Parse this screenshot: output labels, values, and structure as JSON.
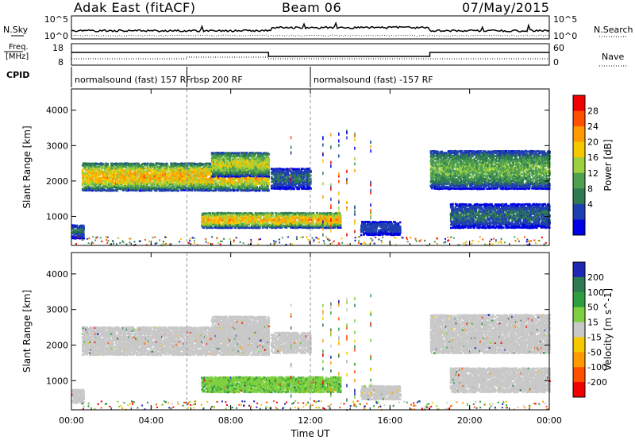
{
  "header": {
    "title": "Adak East (fitACF)",
    "beam": "Beam 06",
    "date": "07/May/2015"
  },
  "strip_labels": {
    "nsky": "N.Sky",
    "nsearch": "N.Search",
    "freq_line1": "Freq.",
    "freq_line2": "[MHz]",
    "nave": "Nave",
    "cpid": "CPID",
    "nsky_ticks": [
      "10^5",
      "10^0"
    ],
    "freq_ticks": [
      "18",
      "8"
    ],
    "nave_ticks": [
      "60",
      "0"
    ]
  },
  "cpid_segments": [
    {
      "label": "normalsound (fast) 157 RF",
      "start_h": 0,
      "end_h": 5.8
    },
    {
      "label": "rbsp 200 RF",
      "start_h": 5.8,
      "end_h": 9.9
    },
    {
      "label": "normalsound (fast) -157 RF",
      "start_h": 12.0,
      "end_h": 24
    }
  ],
  "chart_data": [
    {
      "type": "heatmap",
      "name": "power-panel",
      "xlabel": "",
      "ylabel": "Slant Range [km]",
      "x_ticks": [
        "00:00",
        "04:00",
        "08:00",
        "12:00",
        "16:00",
        "20:00",
        "00:00"
      ],
      "y_ticks": [
        1000,
        2000,
        3000,
        4000
      ],
      "xlim_hours": [
        0,
        24
      ],
      "ylim_km": [
        180,
        4600
      ],
      "colorbar_label": "Power [dB]",
      "colorbar_ticks": [
        28,
        24,
        20,
        16,
        12,
        8,
        4
      ],
      "colorbar_range": [
        0,
        30
      ],
      "colors": [
        "#0000e6",
        "#1f3fb0",
        "#2f7a50",
        "#4fa050",
        "#9cd040",
        "#f5c800",
        "#ff9a00",
        "#ff5000",
        "#f00000"
      ],
      "echo_regions": [
        {
          "start_h": 0.5,
          "end_h": 9.9,
          "range_km": [
            1750,
            2550
          ],
          "peak_db": 22
        },
        {
          "start_h": 7.0,
          "end_h": 9.9,
          "range_km": [
            2150,
            2850
          ],
          "peak_db": 18
        },
        {
          "start_h": 6.5,
          "end_h": 13.5,
          "range_km": [
            700,
            1150
          ],
          "peak_db": 22
        },
        {
          "start_h": 10.0,
          "end_h": 12.0,
          "range_km": [
            1800,
            2400
          ],
          "peak_db": 8
        },
        {
          "start_h": 18.0,
          "end_h": 24.0,
          "range_km": [
            1800,
            2900
          ],
          "peak_db": 14
        },
        {
          "start_h": 19.0,
          "end_h": 24.0,
          "range_km": [
            700,
            1400
          ],
          "peak_db": 8
        },
        {
          "start_h": 0.0,
          "end_h": 0.6,
          "range_km": [
            400,
            800
          ],
          "peak_db": 8
        },
        {
          "start_h": 14.5,
          "end_h": 16.5,
          "range_km": [
            500,
            900
          ],
          "peak_db": 6
        }
      ]
    },
    {
      "type": "heatmap",
      "name": "velocity-panel",
      "xlabel": "Time UT",
      "ylabel": "Slant Range [km]",
      "x_ticks": [
        "00:00",
        "04:00",
        "08:00",
        "12:00",
        "16:00",
        "20:00",
        "00:00"
      ],
      "y_ticks": [
        1000,
        2000,
        3000,
        4000
      ],
      "xlim_hours": [
        0,
        24
      ],
      "ylim_km": [
        180,
        4600
      ],
      "colorbar_label": "Velocity [m s^-1]",
      "colorbar_ticks": [
        200,
        100,
        50,
        15,
        -15,
        -50,
        -100,
        -200
      ],
      "colorbar_range": [
        -250,
        250
      ],
      "colors": [
        "#1e28b4",
        "#2f7a50",
        "#2e9e40",
        "#7ed040",
        "#c8c8c8",
        "#f5c800",
        "#ff9a00",
        "#ff5000",
        "#f00000"
      ],
      "echo_regions": [
        {
          "start_h": 0.5,
          "end_h": 9.9,
          "range_km": [
            1750,
            2550
          ],
          "v": 0
        },
        {
          "start_h": 7.0,
          "end_h": 9.9,
          "range_km": [
            2150,
            2850
          ],
          "v": 0
        },
        {
          "start_h": 6.5,
          "end_h": 13.5,
          "range_km": [
            700,
            1150
          ],
          "v": 40
        },
        {
          "start_h": 10.0,
          "end_h": 12.0,
          "range_km": [
            1800,
            2400
          ],
          "v": 0
        },
        {
          "start_h": 18.0,
          "end_h": 24.0,
          "range_km": [
            1800,
            2900
          ],
          "v": 0
        },
        {
          "start_h": 19.0,
          "end_h": 24.0,
          "range_km": [
            700,
            1400
          ],
          "v": 0
        },
        {
          "start_h": 0.0,
          "end_h": 0.6,
          "range_km": [
            400,
            800
          ],
          "v": 0
        },
        {
          "start_h": 14.5,
          "end_h": 16.5,
          "range_km": [
            500,
            900
          ],
          "v": 0
        }
      ]
    }
  ]
}
